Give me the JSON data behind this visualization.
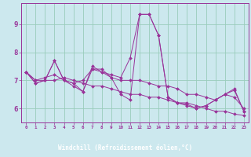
{
  "xlabel": "Windchill (Refroidissement éolien,°C)",
  "bg_color": "#cce8ee",
  "line_color": "#993399",
  "grid_color": "#99ccbb",
  "axis_label_bg": "#660066",
  "axis_label_fg": "#ffffff",
  "xlim": [
    -0.5,
    23.5
  ],
  "ylim": [
    5.5,
    9.75
  ],
  "yticks": [
    6,
    7,
    8,
    9
  ],
  "xticks": [
    0,
    1,
    2,
    3,
    4,
    5,
    6,
    7,
    8,
    9,
    10,
    11,
    12,
    13,
    14,
    15,
    16,
    17,
    18,
    19,
    20,
    21,
    22,
    23
  ],
  "series": [
    [
      7.3,
      6.9,
      7.0,
      7.7,
      7.0,
      6.9,
      6.6,
      7.4,
      7.3,
      7.2,
      7.1,
      7.8,
      9.35,
      9.35,
      8.6,
      6.4,
      6.2,
      6.15,
      6.0,
      6.1,
      6.3,
      6.5,
      6.65,
      5.9
    ],
    [
      7.3,
      7.0,
      7.0,
      7.0,
      7.1,
      7.0,
      6.9,
      6.8,
      6.8,
      6.7,
      6.6,
      6.5,
      6.5,
      6.4,
      6.4,
      6.3,
      6.2,
      6.2,
      6.1,
      6.0,
      5.9,
      5.9,
      5.8,
      5.75
    ],
    [
      7.3,
      6.9,
      7.0,
      7.7,
      7.0,
      6.8,
      6.6,
      7.5,
      7.3,
      7.1,
      6.5,
      6.3,
      9.35,
      9.35,
      8.6,
      6.4,
      6.2,
      6.1,
      6.0,
      6.1,
      6.3,
      6.5,
      6.7,
      5.9
    ],
    [
      7.3,
      7.0,
      7.1,
      7.2,
      7.0,
      6.9,
      7.0,
      7.4,
      7.4,
      7.1,
      7.0,
      7.0,
      7.0,
      6.9,
      6.8,
      6.8,
      6.7,
      6.5,
      6.5,
      6.4,
      6.3,
      6.5,
      6.4,
      6.0
    ]
  ]
}
